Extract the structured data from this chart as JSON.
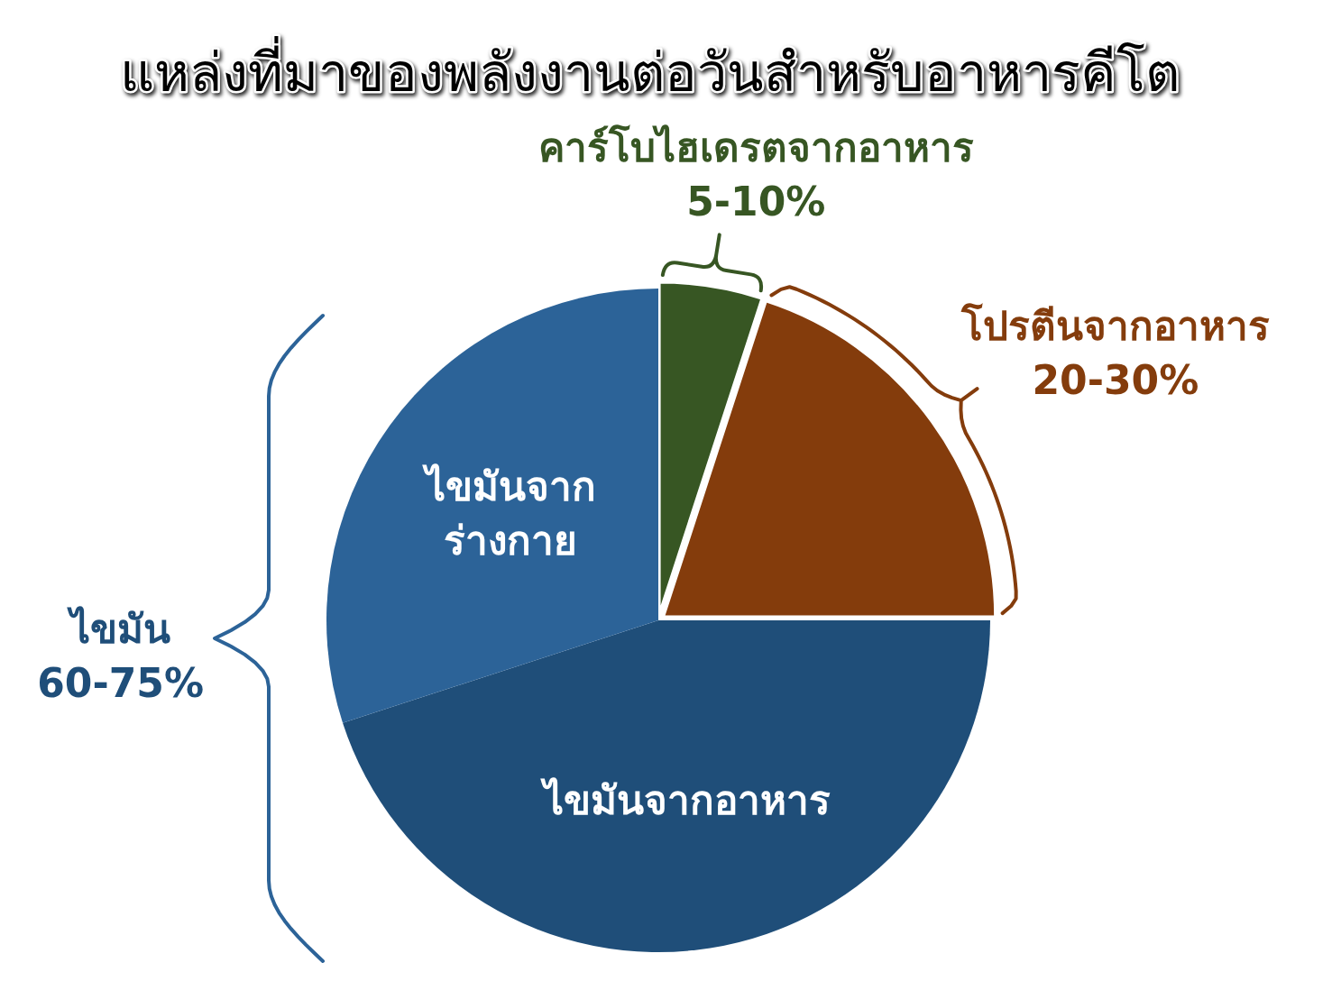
{
  "chart_data": {
    "type": "pie",
    "title": "แหล่งที่มาของพลังงานต่อวันสำหรับอาหารคีโต",
    "categories": [
      "คาร์โบไฮเดรตจากอาหาร",
      "โปรตีนจากอาหาร",
      "ไขมันจากอาหาร",
      "ไขมันจากร่างกาย"
    ],
    "values": [
      5,
      20,
      45,
      30
    ],
    "colors": [
      "#375623",
      "#843c0c",
      "#1f4e79",
      "#2c6398"
    ],
    "value_labels": [
      "5-10%",
      "20-30%",
      null,
      null
    ],
    "annotations": [
      "ไขมัน 60-75%"
    ]
  }
}
